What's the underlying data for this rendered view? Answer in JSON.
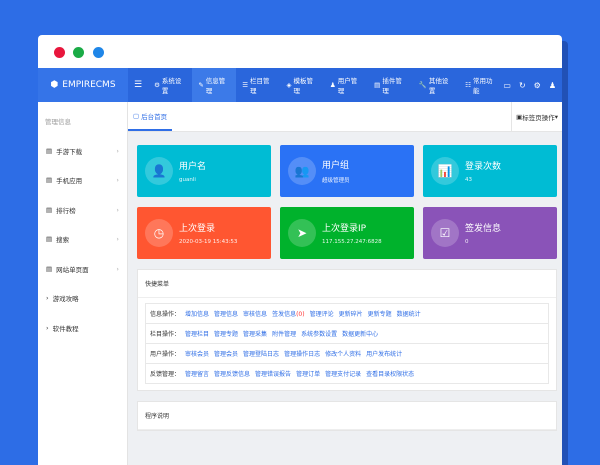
{
  "window": {
    "dots": [
      "#e8163c",
      "#1aab46",
      "#1f86e8"
    ]
  },
  "header": {
    "logo": "EMPIRECMS",
    "nav": [
      {
        "label": "系统设置",
        "icon": "gear"
      },
      {
        "label": "信息管理",
        "icon": "edit",
        "active": true
      },
      {
        "label": "栏目管理",
        "icon": "list"
      },
      {
        "label": "模板管理",
        "icon": "layers"
      },
      {
        "label": "用户管理",
        "icon": "user"
      },
      {
        "label": "插件管理",
        "icon": "file"
      },
      {
        "label": "其他设置",
        "icon": "wrench"
      },
      {
        "label": "常用功能",
        "icon": "sliders"
      }
    ]
  },
  "sidebar": {
    "title": "管理信息",
    "items": [
      {
        "label": "手游下载",
        "icon": "file",
        "chevron": true
      },
      {
        "label": "手机应用",
        "icon": "file",
        "chevron": true
      },
      {
        "label": "排行榜",
        "icon": "file",
        "chevron": true
      },
      {
        "label": "搜索",
        "icon": "file",
        "chevron": true
      },
      {
        "label": "网站单页面",
        "icon": "file",
        "chevron": true
      },
      {
        "label": "游戏攻略",
        "icon": "chevron-right"
      },
      {
        "label": "软件教程",
        "icon": "chevron-right"
      }
    ]
  },
  "tabs": {
    "active": "后台首页",
    "ops": "标签页操作"
  },
  "cards": [
    {
      "title": "用户名",
      "value": "guanli",
      "color": "#00bcd4",
      "icon": "👤"
    },
    {
      "title": "用户组",
      "value": "超级管理员",
      "color": "#2a72f5",
      "icon": "👥"
    },
    {
      "title": "登录次数",
      "value": "43",
      "color": "#00bcd4",
      "icon": "📊"
    },
    {
      "title": "上次登录",
      "value": "2020-03-19 15:43:53",
      "color": "#ff5631",
      "icon": "◷"
    },
    {
      "title": "上次登录IP",
      "value": "117.155.27.247:6828",
      "color": "#00b22c",
      "icon": "➤"
    },
    {
      "title": "签发信息",
      "value": "0",
      "color": "#8a53b8",
      "icon": "☑"
    }
  ],
  "quick": {
    "title": "快捷菜单",
    "rows": [
      {
        "label": "信息操作：",
        "links": [
          "增加信息",
          "管理信息",
          "审核信息",
          "签发信息",
          "管理评论",
          "更新碎片",
          "更新专题",
          "数据统计"
        ],
        "badge": "(0)"
      },
      {
        "label": "栏目操作：",
        "links": [
          "管理栏目",
          "管理专题",
          "管理采集",
          "附件管理",
          "系统参数设置",
          "数据更新中心"
        ]
      },
      {
        "label": "用户操作：",
        "links": [
          "审核会员",
          "管理会员",
          "管理登陆日志",
          "管理操作日志",
          "修改个人资料",
          "用户发布统计"
        ]
      },
      {
        "label": "反馈管理：",
        "links": [
          "管理留言",
          "管理反馈信息",
          "管理错误报告",
          "管理订单",
          "管理支付记录",
          "查看目录权限状态"
        ]
      }
    ]
  },
  "program": {
    "title": "程序说明"
  }
}
